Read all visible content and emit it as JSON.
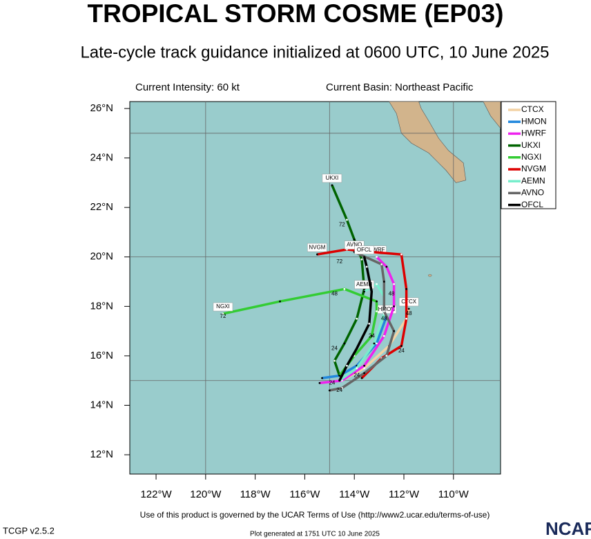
{
  "chart_data": {
    "type": "track",
    "title": "TROPICAL STORM COSME (EP03)",
    "subtitle": "Late-cycle track guidance initialized at 0600 UTC, 10 June 2025",
    "intensity_note": "Current Intensity: 60 kt",
    "basin_note": "Current Basin: Northeast Pacific",
    "footer": "Use of this product is governed by the UCAR Terms of Use (http://www2.ucar.edu/terms-of-use)",
    "version": "TCGP v2.5.2",
    "generated": "Plot generated at 1751 UTC  10 June 2025",
    "logo": "NCAR",
    "xlim": [
      -123.06,
      -108.1
    ],
    "ylim": [
      11.22,
      26.28
    ],
    "xticks": [
      {
        "value": -122,
        "label": "122°W"
      },
      {
        "value": -120,
        "label": "120°W"
      },
      {
        "value": -118,
        "label": "118°W"
      },
      {
        "value": -116,
        "label": "116°W"
      },
      {
        "value": -114,
        "label": "114°W"
      },
      {
        "value": -112,
        "label": "112°W"
      },
      {
        "value": -110,
        "label": "110°W"
      }
    ],
    "yticks": [
      {
        "value": 12,
        "label": "12°N"
      },
      {
        "value": 14,
        "label": "14°N"
      },
      {
        "value": 16,
        "label": "16°N"
      },
      {
        "value": 18,
        "label": "18°N"
      },
      {
        "value": 20,
        "label": "20°N"
      },
      {
        "value": 22,
        "label": "22°N"
      },
      {
        "value": 24,
        "label": "24°N"
      },
      {
        "value": 26,
        "label": "26°N"
      }
    ],
    "grid_x": [
      -120,
      -115,
      -110
    ],
    "grid_y": [
      15,
      20,
      25
    ],
    "series": [
      {
        "name": "CTCX",
        "color": "#f3d2a4",
        "x": [
          -114.5,
          -113.6,
          -112.6,
          -111.9,
          -111.8
        ],
        "values": [
          15.0,
          15.5,
          16.4,
          17.5,
          17.9
        ]
      },
      {
        "name": "HMON",
        "color": "#2288dd",
        "x": [
          -115.3,
          -114.6,
          -113.9,
          -113.1,
          -112.7
        ],
        "values": [
          15.1,
          15.2,
          15.6,
          16.5,
          17.6
        ]
      },
      {
        "name": "HWRF",
        "color": "#ee22ee",
        "x": [
          -115.4,
          -114.5,
          -113.6,
          -112.8,
          -112.4,
          -112.4,
          -112.7,
          -113.1
        ],
        "values": [
          14.9,
          15.0,
          15.6,
          16.8,
          18.0,
          18.9,
          19.6,
          20.0
        ]
      },
      {
        "name": "UKXI",
        "color": "#006400",
        "x": [
          -114.6,
          -114.8,
          -114.4,
          -113.9,
          -113.6,
          -113.7,
          -114.0,
          -114.3,
          -114.9
        ],
        "values": [
          15.2,
          15.8,
          16.5,
          17.5,
          18.7,
          19.9,
          20.7,
          21.5,
          22.9
        ]
      },
      {
        "name": "NGXI",
        "color": "#33cc33",
        "x": [
          -114.6,
          -114.0,
          -113.3,
          -113.1,
          -113.1,
          -114.4,
          -117.0,
          -119.3
        ],
        "values": [
          15.2,
          16.0,
          16.8,
          17.8,
          18.2,
          18.7,
          18.2,
          17.7
        ]
      },
      {
        "name": "NVGM",
        "color": "#dd0000",
        "x": [
          -113.7,
          -112.9,
          -112.1,
          -111.9,
          -111.9,
          -112.1,
          -113.3,
          -114.3,
          -115.5
        ],
        "values": [
          15.1,
          15.9,
          16.4,
          17.5,
          18.7,
          20.1,
          20.2,
          20.3,
          20.1
        ]
      },
      {
        "name": "AEMN",
        "color": "#77eecc",
        "x": [
          -114.6,
          -113.9,
          -113.2,
          -112.8,
          -112.8,
          -113.1,
          -113.6
        ],
        "values": [
          15.0,
          15.5,
          16.5,
          17.7,
          18.4,
          18.9,
          18.6
        ]
      },
      {
        "name": "AVNO",
        "color": "#666666",
        "x": [
          -115.0,
          -114.5,
          -113.6,
          -112.7,
          -112.4,
          -112.8,
          -112.8,
          -112.9,
          -114.0
        ],
        "values": [
          14.6,
          14.7,
          15.3,
          16.0,
          17.0,
          17.8,
          19.0,
          19.7,
          20.2
        ]
      },
      {
        "name": "OFCL",
        "color": "#000000",
        "x": [
          -114.6,
          -114.3,
          -113.9,
          -113.4,
          -113.3,
          -113.5,
          -113.6
        ],
        "values": [
          15.0,
          15.6,
          16.3,
          17.3,
          18.6,
          19.6,
          20.0
        ]
      }
    ],
    "hour_labels": [
      {
        "label": "72",
        "lon": -114.5,
        "lat": 21.3
      },
      {
        "label": "72",
        "lon": -114.6,
        "lat": 19.8
      },
      {
        "label": "72",
        "lon": -119.3,
        "lat": 17.6
      },
      {
        "label": "48",
        "lon": -114.8,
        "lat": 18.5
      },
      {
        "label": "48",
        "lon": -112.5,
        "lat": 18.5
      },
      {
        "label": "48",
        "lon": -111.8,
        "lat": 17.7
      },
      {
        "label": "48",
        "lon": -112.8,
        "lat": 17.5
      },
      {
        "label": "24",
        "lon": -114.8,
        "lat": 16.3
      },
      {
        "label": "24",
        "lon": -113.3,
        "lat": 16.8
      },
      {
        "label": "24",
        "lon": -112.1,
        "lat": 16.2
      },
      {
        "label": "24",
        "lon": -114.9,
        "lat": 14.9
      },
      {
        "label": "24",
        "lon": -114.6,
        "lat": 14.6
      },
      {
        "label": "24",
        "lon": -113.9,
        "lat": 15.2
      }
    ]
  }
}
